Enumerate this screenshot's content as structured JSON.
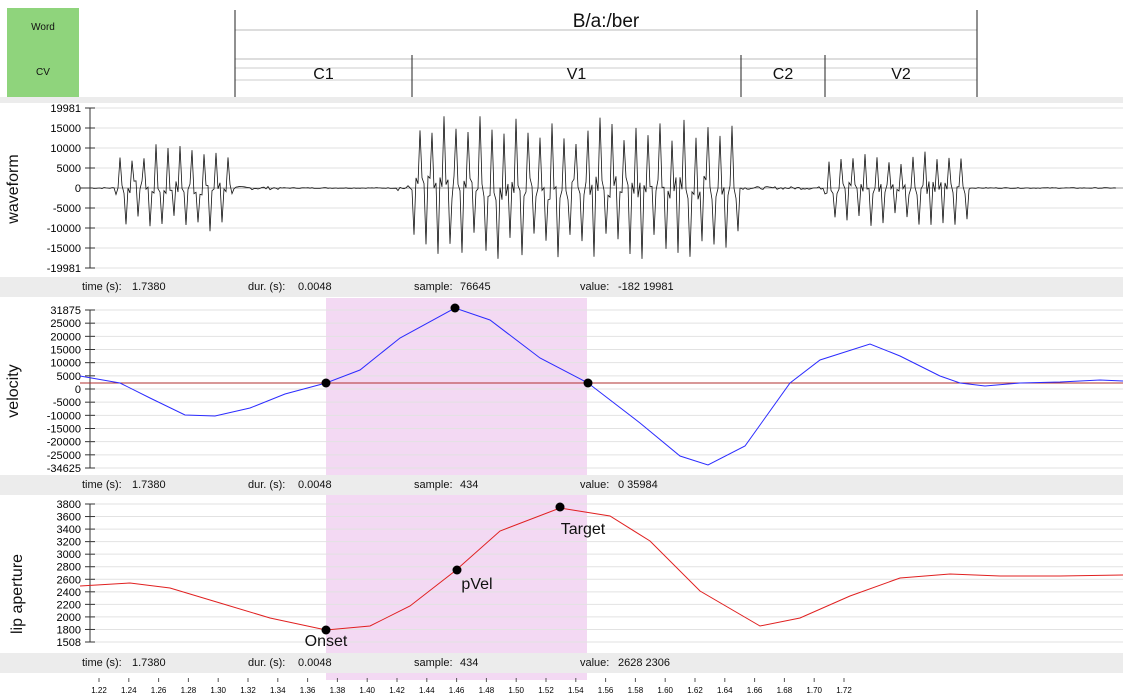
{
  "tiers": {
    "word_label": "Word",
    "cv_label": "CV",
    "word_value": "B/a:/ber",
    "cv_segments": [
      "C1",
      "V1",
      "C2",
      "V2"
    ]
  },
  "panels": {
    "waveform": {
      "ylabel": "waveform",
      "yticks": [
        "19981",
        "15000",
        "10000",
        "5000",
        "0",
        "-5000",
        "-10000",
        "-15000",
        "-19981"
      ],
      "info": {
        "time_label": "time (s):",
        "time": "1.7380",
        "dur_label": "dur. (s):",
        "dur": "0.0048",
        "sample_label": "sample:",
        "sample": "76645",
        "value_label": "value:",
        "value": "-182 19981"
      }
    },
    "velocity": {
      "ylabel": "velocity",
      "yticks": [
        "31875",
        "25000",
        "20000",
        "15000",
        "10000",
        "5000",
        "0",
        "-5000",
        "-10000",
        "-15000",
        "-20000",
        "-25000",
        "-34625"
      ],
      "info": {
        "time_label": "time (s):",
        "time": "1.7380",
        "dur_label": "dur. (s):",
        "dur": "0.0048",
        "sample_label": "sample:",
        "sample": "434",
        "value_label": "value:",
        "value": "0 35984"
      }
    },
    "aperture": {
      "ylabel": "lip aperture",
      "yticks": [
        "3800",
        "3600",
        "3400",
        "3200",
        "3000",
        "2800",
        "2600",
        "2400",
        "2200",
        "2000",
        "1800",
        "1508"
      ],
      "annotations": [
        "Onset",
        "pVel",
        "Target"
      ],
      "info": {
        "time_label": "time (s):",
        "time": "1.7380",
        "dur_label": "dur. (s):",
        "dur": "0.0048",
        "sample_label": "sample:",
        "sample": "434",
        "value_label": "value:",
        "value": "2628 2306"
      }
    }
  },
  "xaxis": {
    "ticks": [
      "1.22",
      "1.24",
      "1.26",
      "1.28",
      "1.30",
      "1.32",
      "1.34",
      "1.36",
      "1.38",
      "1.40",
      "1.42",
      "1.44",
      "1.46",
      "1.48",
      "1.50",
      "1.52",
      "1.54",
      "1.56",
      "1.58",
      "1.60",
      "1.62",
      "1.64",
      "1.66",
      "1.68",
      "1.70",
      "1.72"
    ]
  },
  "colors": {
    "velocity_trace": "#2b2bff",
    "aperture_trace": "#e02020",
    "selection": "#f1d2f1",
    "tier_label_bg": "#8fd47c"
  }
}
